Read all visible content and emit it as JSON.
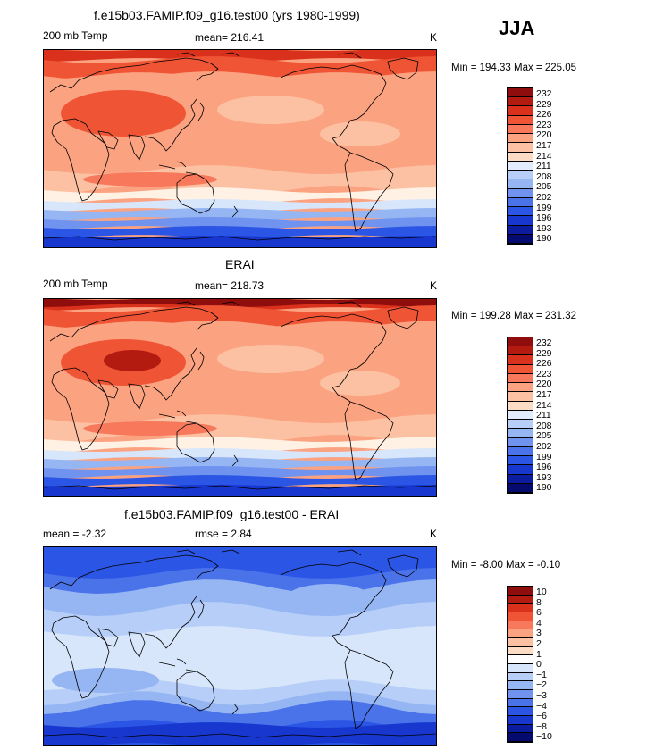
{
  "season": "JJA",
  "colors": {
    "warm": [
      "#fff1e4",
      "#fddcc6",
      "#fcc0a2",
      "#fba281",
      "#f7785b",
      "#ef5435",
      "#d9311b",
      "#b41b10",
      "#8f0d0d"
    ],
    "cold": [
      "#d8e6fb",
      "#b7cff8",
      "#96b5f3",
      "#6f93ef",
      "#4a73ea",
      "#2b55e4",
      "#1737cf",
      "#0b1d9e",
      "#040a6e"
    ]
  },
  "panels": [
    {
      "title": "f.e15b03.FAMIP.f09_g16.test00 (yrs 1980-1999)",
      "left": "200 mb Temp",
      "center": "mean=  216.41",
      "right": "K",
      "minmax": "Min = 194.33 Max = 225.05",
      "map": "model",
      "colorbar": {
        "colors": [
          "#8f0d0d",
          "#b41b10",
          "#d9311b",
          "#ef5435",
          "#f7785b",
          "#fba281",
          "#fcc0a2",
          "#fddcc6",
          "#e3ecfc",
          "#b7cff8",
          "#96b5f3",
          "#6f93ef",
          "#4a73ea",
          "#2b55e4",
          "#1737cf",
          "#0b1d9e",
          "#040a6e"
        ],
        "labels": [
          "232",
          "229",
          "226",
          "223",
          "220",
          "217",
          "214",
          "211",
          "208",
          "205",
          "202",
          "199",
          "196",
          "193",
          "190"
        ]
      }
    },
    {
      "title": "ERAI",
      "left": "200 mb Temp",
      "center": "mean=  218.73",
      "right": "K",
      "minmax": "Min = 199.28 Max = 231.32",
      "map": "obs",
      "colorbar": {
        "colors": [
          "#8f0d0d",
          "#b41b10",
          "#d9311b",
          "#ef5435",
          "#f7785b",
          "#fba281",
          "#fcc0a2",
          "#fddcc6",
          "#e3ecfc",
          "#b7cff8",
          "#96b5f3",
          "#6f93ef",
          "#4a73ea",
          "#2b55e4",
          "#1737cf",
          "#0b1d9e",
          "#040a6e"
        ],
        "labels": [
          "232",
          "229",
          "226",
          "223",
          "220",
          "217",
          "214",
          "211",
          "208",
          "205",
          "202",
          "199",
          "196",
          "193",
          "190"
        ]
      }
    },
    {
      "title": "f.e15b03.FAMIP.f09_g16.test00 - ERAI",
      "left": "mean =   -2.32",
      "center": "rmse =    2.84",
      "right": "K",
      "minmax": "Min =  -8.00 Max =  -0.10",
      "map": "diff",
      "colorbar": {
        "colors": [
          "#8f0d0d",
          "#b41b10",
          "#d9311b",
          "#ef5435",
          "#f7785b",
          "#fba281",
          "#fcc0a2",
          "#fddcc6",
          "#ffffff",
          "#d8e6fb",
          "#b7cff8",
          "#96b5f3",
          "#6f93ef",
          "#4a73ea",
          "#2b55e4",
          "#1737cf",
          "#0b1d9e",
          "#040a6e"
        ],
        "labels": [
          "10",
          "8",
          "6",
          "4",
          "3",
          "2",
          "1",
          "0",
          "−1",
          "−2",
          "−3",
          "−4",
          "−6",
          "−8",
          "−10"
        ]
      }
    }
  ]
}
